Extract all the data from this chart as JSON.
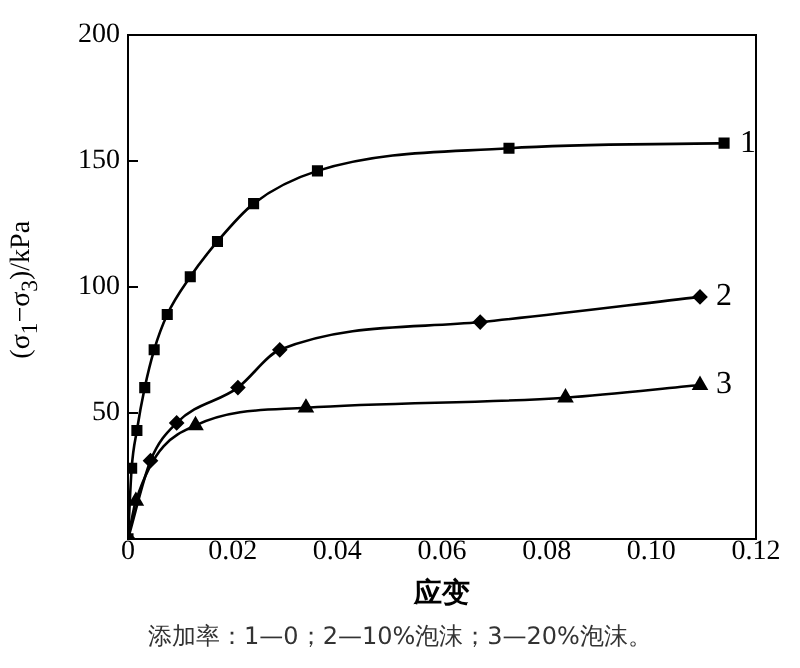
{
  "chart_data": {
    "type": "line",
    "xlabel": "应变",
    "ylabel": "(σ$_{1}$−σ$_{3}$)/kPa",
    "xlim": [
      0,
      0.12
    ],
    "xticks": [
      0,
      0.02,
      0.04,
      0.06,
      0.08,
      {
        "value": 0.1,
        "label": "0.10"
      },
      0.12
    ],
    "ylim": [
      0,
      200
    ],
    "yticks": [
      50,
      100,
      150,
      200
    ],
    "grid": false,
    "legend": false,
    "line_style": "solid",
    "series": [
      {
        "name": "1",
        "color": "#000000",
        "marker": "square",
        "x": [
          0,
          0.0007,
          0.0017,
          0.0032,
          0.005,
          0.0075,
          0.0119,
          0.0171,
          0.024,
          0.0362,
          0.0728,
          0.1139
        ],
        "values": [
          0,
          28,
          43,
          60,
          75,
          89,
          104,
          118,
          133,
          146,
          155,
          157
        ]
      },
      {
        "name": "2",
        "color": "#000000",
        "marker": "diamond",
        "x": [
          0,
          0.0043,
          0.0093,
          0.021,
          0.029,
          0.0673,
          0.1093
        ],
        "values": [
          0,
          31,
          46,
          60,
          75,
          86,
          96
        ]
      },
      {
        "name": "3",
        "color": "#000000",
        "marker": "triangle",
        "x": [
          0,
          0.0015,
          0.0129,
          0.034,
          0.0836,
          0.1093
        ],
        "values": [
          0,
          15,
          45,
          52,
          56,
          61
        ]
      }
    ],
    "annotations": [
      "添加率：1—0；2—10%泡沫；3—20%泡沫。"
    ]
  }
}
